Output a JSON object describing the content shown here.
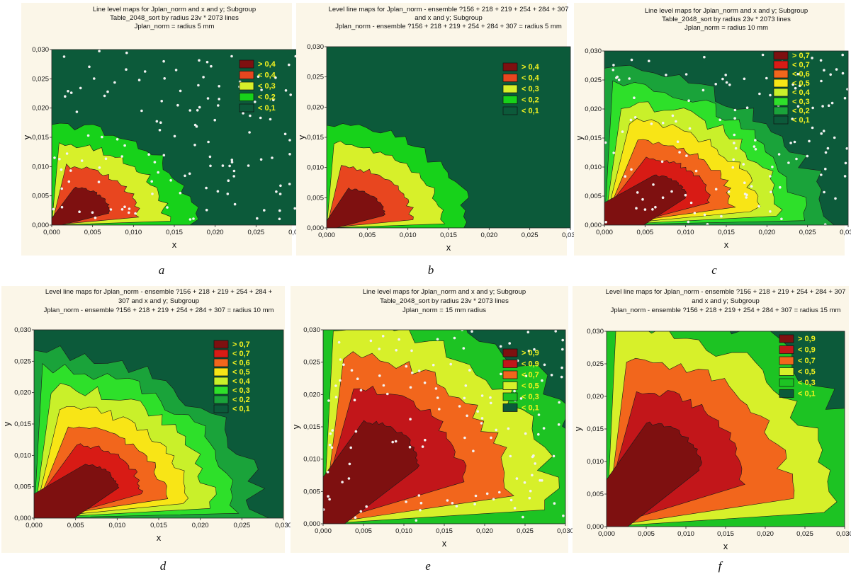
{
  "captions": [
    "a",
    "b",
    "c",
    "d",
    "e",
    "f"
  ],
  "chart_data": [
    {
      "type": "heatmap",
      "panel": "a",
      "title": [
        "Line level maps for Jplan_norm and x and y; Subgroup",
        "Table_2048_sort by radius 23v * 2073 lines",
        "Jplan_norm = radius 5 mm"
      ],
      "xlabel": "x",
      "ylabel": "y",
      "xlim": [
        0,
        0.03
      ],
      "ylim": [
        0,
        0.03
      ],
      "xticks": [
        "0,000",
        "0,005",
        "0,010",
        "0,015",
        "0,020",
        "0,025",
        "0,030"
      ],
      "yticks": [
        "0,000",
        "0,005",
        "0,010",
        "0,015",
        "0,020",
        "0,025",
        "0,030"
      ],
      "legend": [
        "> 0,4",
        "< 0,4",
        "< 0,3",
        "< 0,2",
        "< 0,1"
      ],
      "legend_position": "top-right",
      "peak": {
        "x": 0.004,
        "y": 0.003,
        "value": 0.45
      },
      "extent_x": 0.0175,
      "extent_y": 0.0175,
      "points_shown": true
    },
    {
      "type": "heatmap",
      "panel": "b",
      "title": [
        "Level line maps for Jplan_norm - ensemble ?156 + 218 + 219 + 254 + 284 + 307",
        "and x and y; Subgroup",
        "Jplan_norm - ensemble ?156 + 218 + 219 + 254 + 284 + 307 = radius 5 mm"
      ],
      "xlabel": "x",
      "ylabel": "y",
      "xlim": [
        0,
        0.03
      ],
      "ylim": [
        0,
        0.03
      ],
      "xticks": [
        "0,000",
        "0,005",
        "0,010",
        "0,015",
        "0,020",
        "0,025",
        "0,030"
      ],
      "yticks": [
        "0,000",
        "0,005",
        "0,010",
        "0,015",
        "0,020",
        "0,025",
        "0,030"
      ],
      "legend": [
        "> 0,4",
        "< 0,4",
        "< 0,3",
        "< 0,2",
        "< 0,1"
      ],
      "legend_position": "top-right",
      "peak": {
        "x": 0.004,
        "y": 0.003,
        "value": 0.45
      },
      "extent_x": 0.0175,
      "extent_y": 0.0175,
      "points_shown": false
    },
    {
      "type": "heatmap",
      "panel": "c",
      "title": [
        "Line level maps for Jplan_norm and x and y; Subgroup",
        "Table_2048_sort by radius 23v * 2073 lines",
        "Jplan_norm = radius 10 mm"
      ],
      "xlabel": "x",
      "ylabel": "y",
      "xlim": [
        0,
        0.03
      ],
      "ylim": [
        0,
        0.03
      ],
      "xticks": [
        "0,000",
        "0,005",
        "0,010",
        "0,015",
        "0,020",
        "0,025",
        "0,030"
      ],
      "yticks": [
        "0,000",
        "0,005",
        "0,010",
        "0,015",
        "0,020",
        "0,025",
        "0,030"
      ],
      "legend": [
        "> 0,7",
        "< 0,7",
        "< 0,6",
        "< 0,5",
        "< 0,4",
        "< 0,3",
        "< 0,2",
        "< 0,1"
      ],
      "legend_position": "top-right",
      "peak": {
        "x": 0.008,
        "y": 0.006,
        "value": 0.75
      },
      "extent_x": 0.027,
      "extent_y": 0.027,
      "points_shown": true
    },
    {
      "type": "heatmap",
      "panel": "d",
      "title": [
        "Level line maps for Jplan_norm - ensemble ?156 + 218 + 219 + 254 + 284 +",
        "307 and x and y; Subgroup",
        "Jplan_norm - ensemble ?156 + 218 + 219 + 254 + 284 + 307 = radius 10 mm"
      ],
      "xlabel": "x",
      "ylabel": "y",
      "xlim": [
        0,
        0.03
      ],
      "ylim": [
        0,
        0.03
      ],
      "xticks": [
        "0,000",
        "0,005",
        "0,010",
        "0,015",
        "0,020",
        "0,025",
        "0,030"
      ],
      "yticks": [
        "0,000",
        "0,005",
        "0,010",
        "0,015",
        "0,020",
        "0,025",
        "0,030"
      ],
      "legend": [
        "> 0,7",
        "< 0,7",
        "< 0,6",
        "< 0,5",
        "< 0,4",
        "< 0,3",
        "< 0,2",
        "< 0,1"
      ],
      "legend_position": "top-right",
      "peak": {
        "x": 0.008,
        "y": 0.006,
        "value": 0.75
      },
      "extent_x": 0.027,
      "extent_y": 0.027,
      "points_shown": false
    },
    {
      "type": "heatmap",
      "panel": "e",
      "title": [
        "Line level maps for Jplan_norm and x and y; Subgroup",
        "Table_2048_sort by radius 23v * 2073 lines",
        "Jplan_norm = 15 mm radius"
      ],
      "xlabel": "x",
      "ylabel": "y",
      "xlim": [
        0,
        0.03
      ],
      "ylim": [
        0,
        0.03
      ],
      "xticks": [
        "0,000",
        "0,005",
        "0,010",
        "0,015",
        "0,020",
        "0,025",
        "0,030"
      ],
      "yticks": [
        "0,000",
        "0,005",
        "0,010",
        "0,015",
        "0,020",
        "0,025",
        "0,030"
      ],
      "legend": [
        "> 0,9",
        "< 0,9",
        "< 0,7",
        "< 0,5",
        "< 0,3",
        "< 0,1"
      ],
      "legend_position": "top-right",
      "peak": {
        "x": 0.007,
        "y": 0.012,
        "value": 0.95
      },
      "extent_x": 0.034,
      "extent_y": 0.036,
      "points_shown": true
    },
    {
      "type": "heatmap",
      "panel": "f",
      "title": [
        "Level line maps for Jplan_norm - ensemble ?156 + 218 + 219 + 254 + 284 + 307",
        "and x and y; Subgroup",
        "Jplan_norm - ensemble ?156 + 218 + 219 + 254 + 284 + 307 = radius 15 mm"
      ],
      "xlabel": "x",
      "ylabel": "y",
      "xlim": [
        0,
        0.03
      ],
      "ylim": [
        0,
        0.03
      ],
      "xticks": [
        "0,000",
        "0,005",
        "0,010",
        "0,015",
        "0,020",
        "0,025",
        "0,030"
      ],
      "yticks": [
        "0,000",
        "0,005",
        "0,010",
        "0,015",
        "0,020",
        "0,025",
        "0,030"
      ],
      "legend": [
        "> 0,9",
        "< 0,9",
        "< 0,7",
        "< 0,5",
        "< 0,3",
        "< 0,1"
      ],
      "legend_position": "top-right",
      "peak": {
        "x": 0.007,
        "y": 0.012,
        "value": 0.95
      },
      "extent_x": 0.034,
      "extent_y": 0.036,
      "points_shown": false
    }
  ]
}
